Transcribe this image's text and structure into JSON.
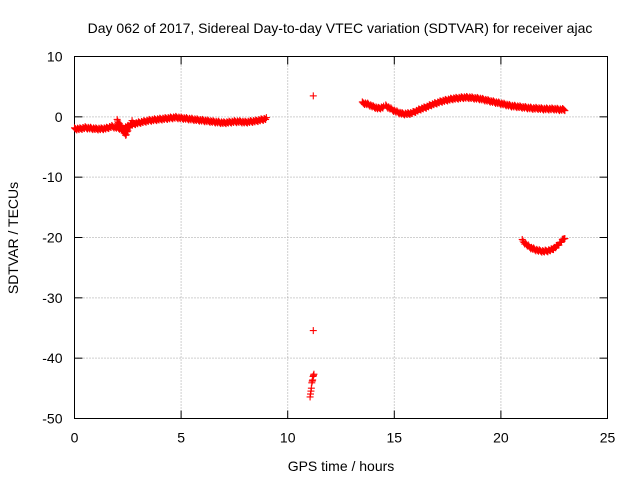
{
  "chart_data": {
    "type": "scatter",
    "title": "Day 062 of 2017, Sidereal Day-to-day VTEC variation (SDTVAR) for receiver ajac",
    "xlabel": "GPS time / hours",
    "ylabel": "SDTVAR / TECUs",
    "xlim": [
      0,
      25
    ],
    "ylim": [
      -50,
      10
    ],
    "xticks": [
      0,
      5,
      10,
      15,
      20,
      25
    ],
    "yticks": [
      -50,
      -40,
      -30,
      -20,
      -10,
      0,
      10
    ],
    "grid": true,
    "legend": "none",
    "marker": "cross",
    "color": "#ff0000",
    "series": [
      {
        "name": "SDTVAR",
        "segments": [
          {
            "x": [
              0.0,
              0.25,
              0.5,
              0.75,
              1.0,
              1.25,
              1.5,
              1.75,
              2.0,
              2.25,
              2.5,
              2.75,
              3.0,
              3.25,
              3.5,
              3.75,
              4.0,
              4.25,
              4.5,
              4.75,
              5.0,
              5.25,
              5.5,
              5.75,
              6.0,
              6.25,
              6.5,
              6.75,
              7.0,
              7.25,
              7.5,
              7.75,
              8.0,
              8.25,
              8.5,
              8.75,
              9.0
            ],
            "y": [
              -2.0,
              -2.0,
              -1.8,
              -1.9,
              -2.0,
              -2.0,
              -1.9,
              -1.6,
              -1.8,
              -2.0,
              -1.6,
              -1.2,
              -1.0,
              -0.8,
              -0.6,
              -0.5,
              -0.4,
              -0.3,
              -0.2,
              -0.1,
              -0.2,
              -0.3,
              -0.4,
              -0.5,
              -0.6,
              -0.7,
              -0.8,
              -0.9,
              -1.0,
              -0.9,
              -0.8,
              -0.8,
              -0.9,
              -0.8,
              -0.7,
              -0.5,
              -0.3
            ]
          },
          {
            "x": [
              2.0,
              2.05,
              2.1,
              2.15,
              2.2,
              2.25,
              2.3,
              2.35,
              2.4,
              2.45,
              2.5,
              2.55,
              2.6,
              2.65,
              2.7
            ],
            "y": [
              -0.6,
              -0.9,
              -1.2,
              -1.5,
              -1.8,
              -2.1,
              -2.4,
              -2.7,
              -3.0,
              -2.6,
              -2.2,
              -1.8,
              -1.4,
              -1.1,
              -0.8
            ]
          },
          {
            "x": [
              11.2
            ],
            "y": [
              3.3
            ]
          },
          {
            "x": [
              11.2
            ],
            "y": [
              -35.6
            ]
          },
          {
            "x": [
              11.05,
              11.07,
              11.09,
              11.11,
              11.13,
              11.15,
              11.17,
              11.19,
              11.21,
              11.23
            ],
            "y": [
              -46.6,
              -46.0,
              -45.4,
              -44.8,
              -44.2,
              -43.8,
              -43.5,
              -43.2,
              -42.9,
              -42.6
            ]
          },
          {
            "x": [
              13.5,
              13.75,
              14.0,
              14.25,
              14.5
            ],
            "y": [
              2.3,
              2.1,
              1.7,
              1.4,
              1.6
            ]
          },
          {
            "x": [
              14.6,
              14.8,
              15.0,
              15.2,
              15.4,
              15.6,
              15.8,
              16.0,
              16.25,
              16.5,
              16.75,
              17.0,
              17.25,
              17.5,
              17.75,
              18.0,
              18.25,
              18.5,
              18.75,
              19.0,
              19.25,
              19.5,
              19.75,
              20.0,
              20.25,
              20.5,
              20.75,
              21.0,
              21.25,
              21.5,
              21.75,
              22.0,
              22.25,
              22.5,
              22.75,
              23.0
            ],
            "y": [
              1.8,
              1.4,
              1.0,
              0.7,
              0.5,
              0.5,
              0.6,
              0.9,
              1.3,
              1.6,
              2.0,
              2.3,
              2.6,
              2.8,
              3.0,
              3.1,
              3.2,
              3.2,
              3.1,
              3.0,
              2.8,
              2.6,
              2.4,
              2.2,
              2.0,
              1.8,
              1.7,
              1.6,
              1.5,
              1.4,
              1.4,
              1.3,
              1.3,
              1.3,
              1.2,
              1.2
            ]
          },
          {
            "x": [
              21.0,
              21.2,
              21.4,
              21.6,
              21.8,
              22.0,
              22.2,
              22.4,
              22.6,
              22.8,
              23.0
            ],
            "y": [
              -20.5,
              -21.2,
              -21.7,
              -22.0,
              -22.2,
              -22.3,
              -22.2,
              -22.0,
              -21.5,
              -20.8,
              -20.0
            ]
          }
        ]
      }
    ]
  }
}
